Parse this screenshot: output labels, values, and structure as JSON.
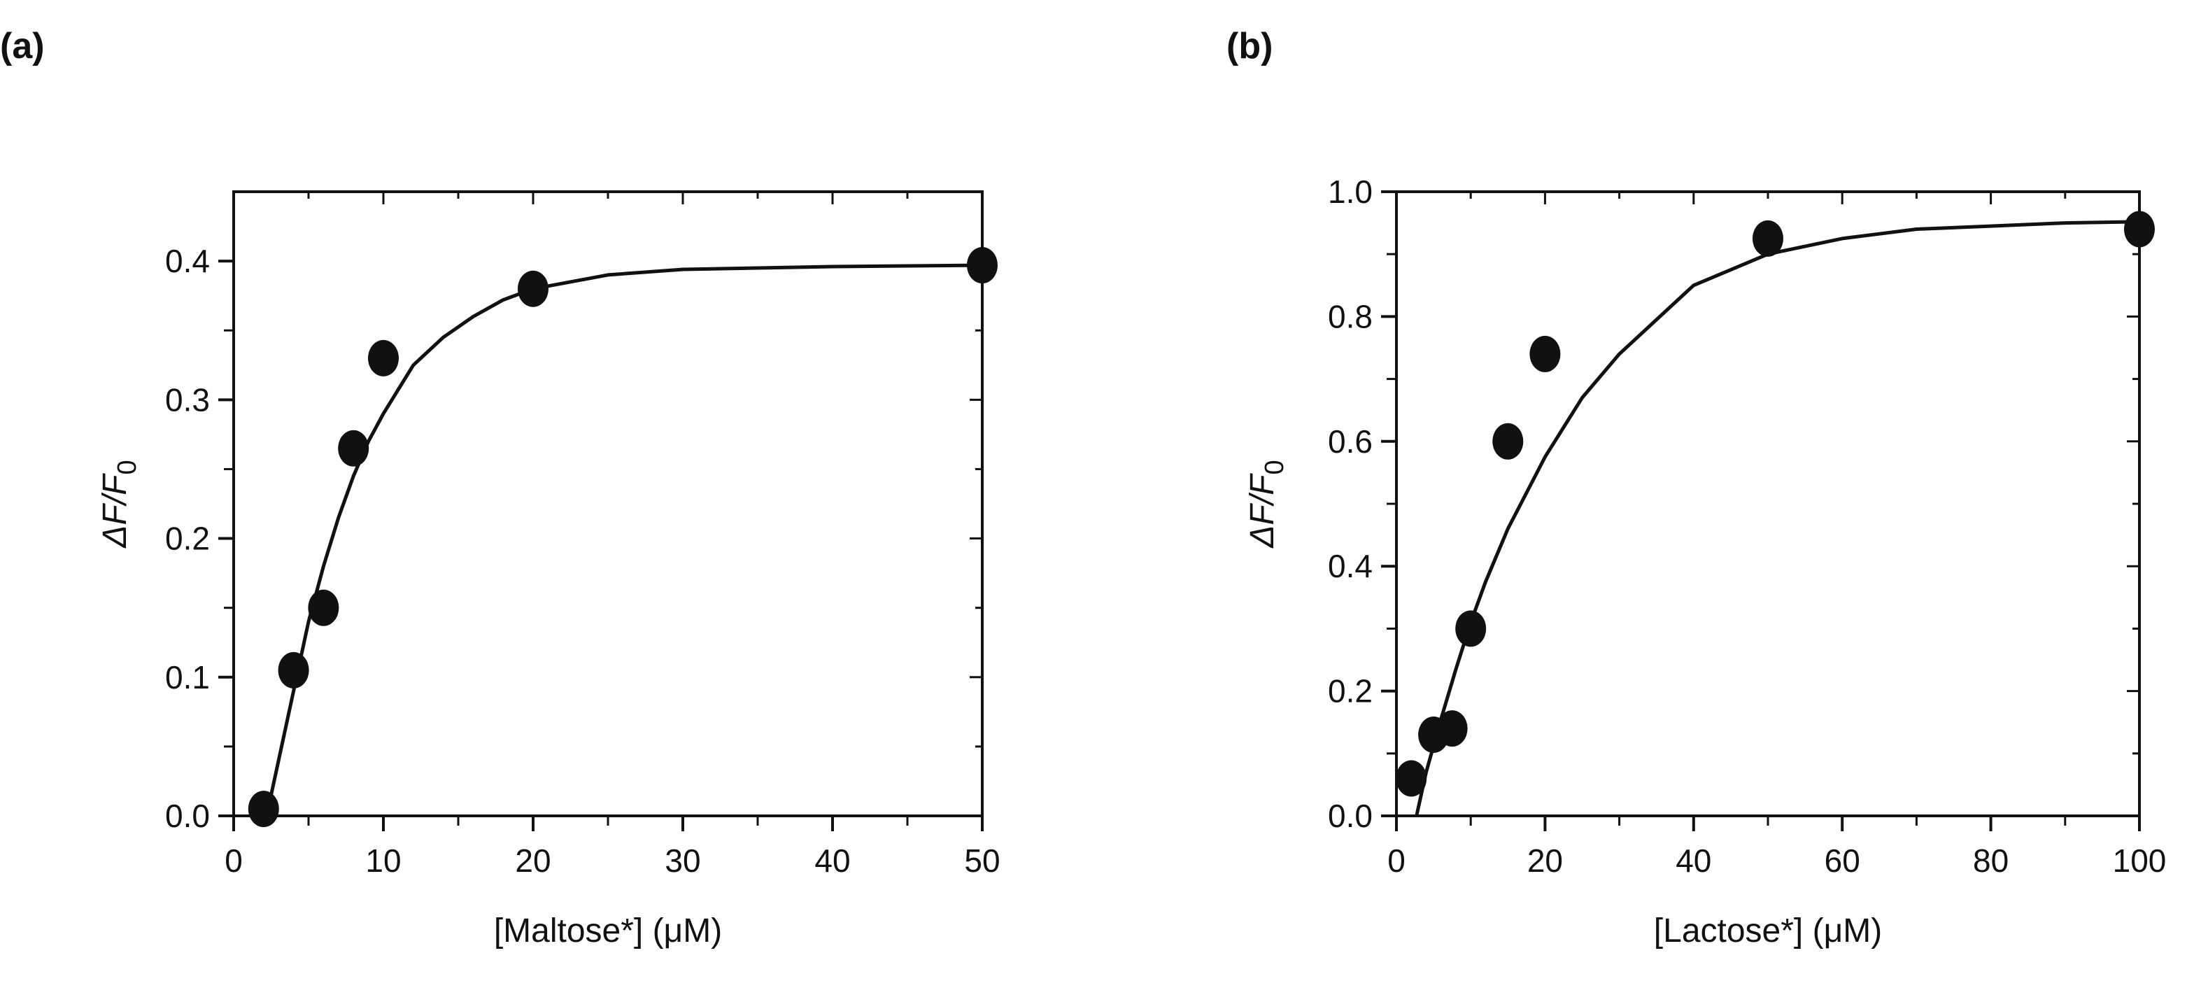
{
  "chart_data": [
    {
      "type": "scatter",
      "panel_label": "(a)",
      "xlabel": "[Maltose*] (μM)",
      "ylabel": "ΔF/F0",
      "ylabel_main": "ΔF/F",
      "ylabel_sub": "0",
      "xlim": [
        0,
        50
      ],
      "ylim": [
        0,
        0.45
      ],
      "xticks": [
        0,
        10,
        20,
        30,
        40,
        50
      ],
      "xtick_labels": [
        "0",
        "10",
        "20",
        "30",
        "40",
        "50"
      ],
      "yticks": [
        0.0,
        0.1,
        0.2,
        0.3,
        0.4
      ],
      "ytick_labels": [
        "0.0",
        "0.1",
        "0.2",
        "0.3",
        "0.4"
      ],
      "grid": false,
      "points": {
        "x": [
          2,
          4,
          6,
          8,
          10,
          20,
          50
        ],
        "y": [
          0.005,
          0.105,
          0.15,
          0.265,
          0.33,
          0.38,
          0.397
        ]
      },
      "fit_curve": {
        "x": [
          2.2,
          3,
          4,
          5,
          6,
          7,
          8,
          9,
          10,
          12,
          14,
          16,
          18,
          20,
          25,
          30,
          40,
          50
        ],
        "y": [
          0.0,
          0.04,
          0.09,
          0.14,
          0.18,
          0.215,
          0.245,
          0.27,
          0.29,
          0.325,
          0.345,
          0.36,
          0.372,
          0.38,
          0.39,
          0.394,
          0.396,
          0.397
        ]
      },
      "colors": {
        "ink": "#111111"
      }
    },
    {
      "type": "scatter",
      "panel_label": "(b)",
      "xlabel": "[Lactose*] (μM)",
      "ylabel": "ΔF/F0",
      "ylabel_main": "ΔF/F",
      "ylabel_sub": "0",
      "xlim": [
        0,
        100
      ],
      "ylim": [
        0,
        1.0
      ],
      "xticks": [
        0,
        20,
        40,
        60,
        80,
        100
      ],
      "xtick_labels": [
        "0",
        "20",
        "40",
        "60",
        "80",
        "100"
      ],
      "yticks": [
        0.0,
        0.2,
        0.4,
        0.6,
        0.8,
        1.0
      ],
      "ytick_labels": [
        "0.0",
        "0.2",
        "0.4",
        "0.6",
        "0.8",
        "1.0"
      ],
      "grid": false,
      "points": {
        "x": [
          2,
          5,
          7.5,
          10,
          15,
          20,
          50,
          100
        ],
        "y": [
          0.06,
          0.13,
          0.14,
          0.3,
          0.6,
          0.74,
          0.925,
          0.94
        ]
      },
      "fit_curve": {
        "x": [
          2.7,
          4,
          6,
          8,
          10,
          12,
          15,
          20,
          25,
          30,
          40,
          50,
          60,
          70,
          80,
          90,
          100
        ],
        "y": [
          0.0,
          0.07,
          0.155,
          0.235,
          0.31,
          0.375,
          0.46,
          0.575,
          0.67,
          0.74,
          0.85,
          0.9,
          0.925,
          0.94,
          0.945,
          0.95,
          0.952
        ]
      },
      "colors": {
        "ink": "#111111"
      }
    }
  ]
}
